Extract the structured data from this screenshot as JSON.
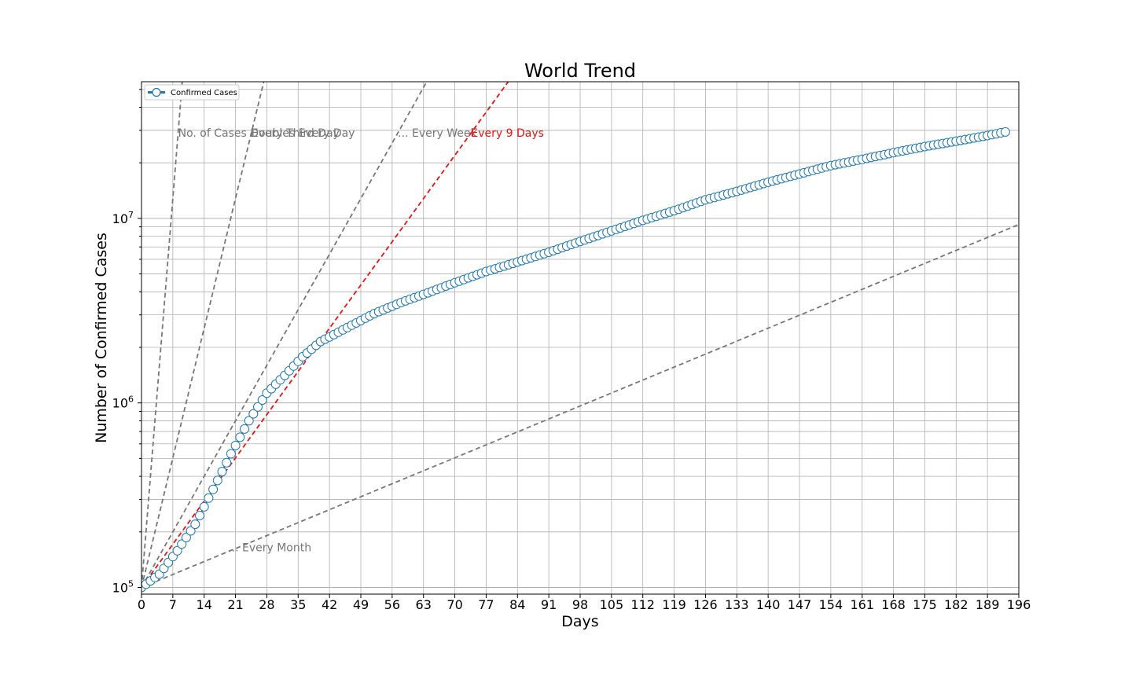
{
  "chart_data": {
    "type": "line",
    "title": "World Trend",
    "xlabel": "Days",
    "ylabel": "Number of Confirmed Cases",
    "x_ticks": [
      0,
      7,
      14,
      21,
      28,
      35,
      42,
      49,
      56,
      63,
      70,
      77,
      84,
      91,
      98,
      105,
      112,
      119,
      126,
      133,
      140,
      147,
      154,
      161,
      168,
      175,
      182,
      189,
      196
    ],
    "y_ticks": [
      {
        "value": 100000,
        "base": "10",
        "exp": "5"
      },
      {
        "value": 1000000,
        "base": "10",
        "exp": "6"
      },
      {
        "value": 10000000,
        "base": "10",
        "exp": "7"
      }
    ],
    "xlim": [
      0,
      196
    ],
    "ylim": [
      92000,
      55000000
    ],
    "y_scale": "log",
    "grid": true,
    "legend": {
      "position": "top-left",
      "entries": [
        "Confirmed Cases"
      ]
    },
    "series": [
      {
        "name": "Confirmed Cases",
        "color": "#1f77b4",
        "marker": "circle-open",
        "anchors": [
          [
            0,
            100000
          ],
          [
            4,
            118000
          ],
          [
            8,
            158000
          ],
          [
            12,
            220000
          ],
          [
            16,
            340000
          ],
          [
            20,
            530000
          ],
          [
            24,
            800000
          ],
          [
            28,
            1130000
          ],
          [
            32,
            1410000
          ],
          [
            36,
            1780000
          ],
          [
            40,
            2150000
          ],
          [
            46,
            2560000
          ],
          [
            52,
            3050000
          ],
          [
            58,
            3500000
          ],
          [
            64,
            3950000
          ],
          [
            70,
            4480000
          ],
          [
            77,
            5150000
          ],
          [
            84,
            5800000
          ],
          [
            91,
            6550000
          ],
          [
            98,
            7500000
          ],
          [
            105,
            8550000
          ],
          [
            112,
            9750000
          ],
          [
            119,
            11000000
          ],
          [
            126,
            12600000
          ],
          [
            133,
            14000000
          ],
          [
            140,
            15700000
          ],
          [
            147,
            17400000
          ],
          [
            154,
            19300000
          ],
          [
            161,
            20900000
          ],
          [
            168,
            22700000
          ],
          [
            175,
            24500000
          ],
          [
            182,
            26200000
          ],
          [
            189,
            28100000
          ],
          [
            193,
            29400000
          ]
        ],
        "count": 194
      }
    ],
    "reference_lines": [
      {
        "name": "No. of Cases Doubles Every Day",
        "label": "No. of Cases Doubles Every Day",
        "doubling_days": 1,
        "color": "#777777",
        "label_pos": "top"
      },
      {
        "name": "Every Third Day",
        "label": "Every Third Day",
        "doubling_days": 3,
        "color": "#777777",
        "label_pos": "top"
      },
      {
        "name": "Every Week",
        "label": "... Every Week",
        "doubling_days": 7,
        "color": "#777777",
        "label_pos": "top"
      },
      {
        "name": "Every 9 Days",
        "label": "Every 9 Days",
        "doubling_days": 9,
        "color": "#ee1111",
        "label_pos": "top"
      },
      {
        "name": "Every Month",
        "label": "... Every Month",
        "doubling_days": 30,
        "color": "#777777",
        "label_pos": "bottom"
      }
    ]
  }
}
